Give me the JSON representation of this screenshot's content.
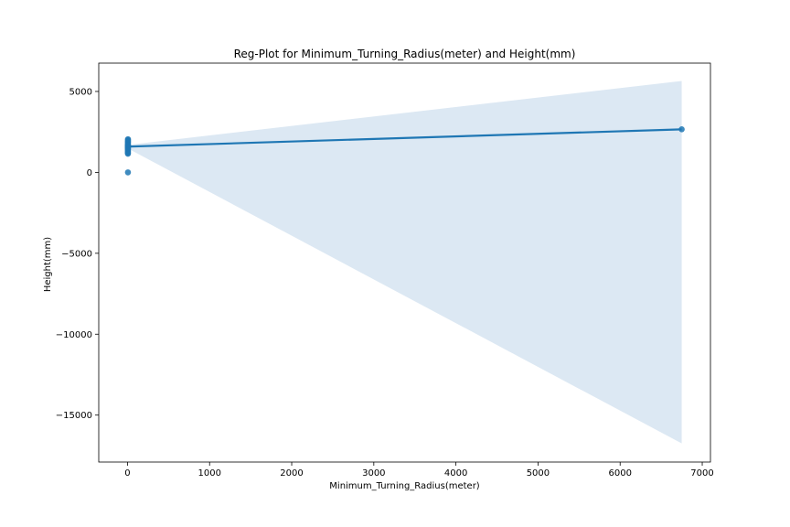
{
  "chart_data": {
    "type": "scatter",
    "title": "Reg-Plot for Minimum_Turning_Radius(meter) and Height(mm)",
    "xlabel": "Minimum_Turning_Radius(meter)",
    "ylabel": "Height(mm)",
    "xlim": [
      -350,
      7100
    ],
    "ylim": [
      -17900,
      6750
    ],
    "xticks": [
      0,
      1000,
      2000,
      3000,
      4000,
      5000,
      6000,
      7000
    ],
    "xtick_labels": [
      "0",
      "1000",
      "2000",
      "3000",
      "4000",
      "5000",
      "6000",
      "7000"
    ],
    "yticks": [
      -15000,
      -10000,
      -5000,
      0,
      5000
    ],
    "ytick_labels": [
      "−15000",
      "−10000",
      "−5000",
      "0",
      "5000"
    ],
    "grid": false,
    "colors": {
      "points": "#1f77b4",
      "line": "#1f77b4",
      "band": "#dce8f3"
    },
    "points": [
      {
        "x": 5.0,
        "y": 1540
      },
      {
        "x": 5.1,
        "y": 1600
      },
      {
        "x": 5.2,
        "y": 1650
      },
      {
        "x": 5.3,
        "y": 1700
      },
      {
        "x": 5.4,
        "y": 1750
      },
      {
        "x": 5.5,
        "y": 1800
      },
      {
        "x": 5.6,
        "y": 1850
      },
      {
        "x": 5.7,
        "y": 1900
      },
      {
        "x": 5.8,
        "y": 1950
      },
      {
        "x": 5.9,
        "y": 2000
      },
      {
        "x": 6.0,
        "y": 2050
      },
      {
        "x": 5.5,
        "y": 1450
      },
      {
        "x": 5.2,
        "y": 1400
      },
      {
        "x": 5.3,
        "y": 1350
      },
      {
        "x": 5.6,
        "y": 1300
      },
      {
        "x": 5.1,
        "y": 1250
      },
      {
        "x": 5.0,
        "y": 1200
      },
      {
        "x": 5.4,
        "y": 1150
      },
      {
        "x": 5.1,
        "y": 1500
      },
      {
        "x": 5.2,
        "y": 1680
      },
      {
        "x": 5.3,
        "y": 1550
      },
      {
        "x": 5.5,
        "y": 0
      },
      {
        "x": 6750,
        "y": 2660
      }
    ],
    "regression": {
      "x": [
        5,
        6750
      ],
      "y": [
        1590,
        2660
      ]
    },
    "confidence_band": {
      "x": [
        5,
        6750
      ],
      "upper": [
        1700,
        5650
      ],
      "lower": [
        1480,
        -16750
      ]
    }
  }
}
